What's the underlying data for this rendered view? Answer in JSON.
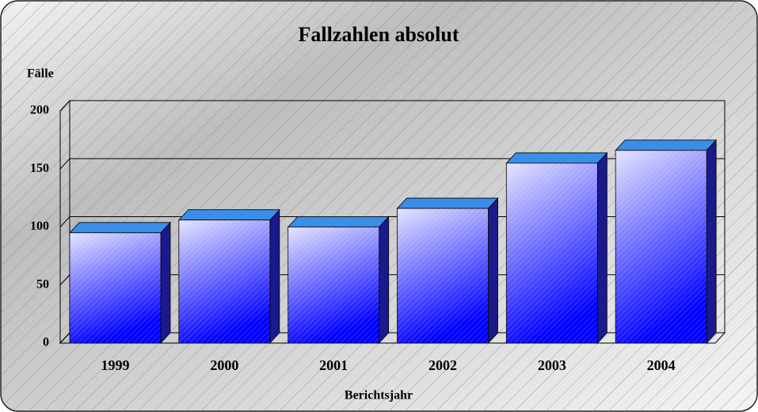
{
  "chart_data": {
    "type": "bar",
    "title": "Fallzahlen absolut",
    "y_label": "Fälle",
    "x_label": "Berichtsjahr",
    "categories": [
      "1999",
      "2000",
      "2001",
      "2002",
      "2003",
      "2004"
    ],
    "values": [
      95,
      106,
      100,
      116,
      155,
      166
    ],
    "color": "#0000ff",
    "ylim": [
      0,
      200
    ],
    "yticks": [
      0,
      50,
      100,
      150,
      200
    ],
    "grid": true
  }
}
